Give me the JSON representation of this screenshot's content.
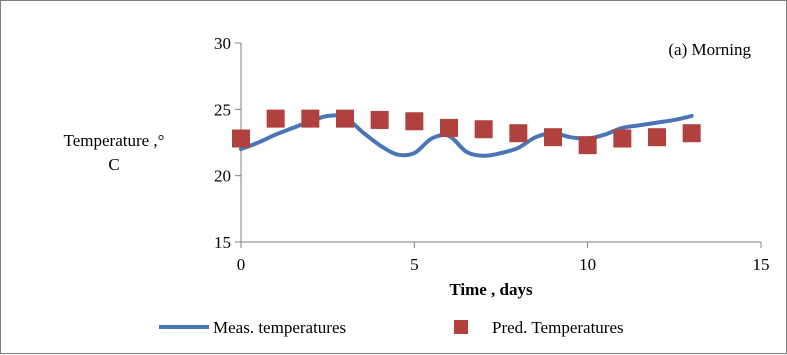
{
  "chart_data": {
    "type": "line",
    "annotation": "(a) Morning",
    "xlabel": "Time , days",
    "ylabel_line1": "Temperature ,°",
    "ylabel_line2": "C",
    "xlim": [
      0,
      15
    ],
    "ylim": [
      15,
      30
    ],
    "x_ticks": [
      0,
      5,
      10,
      15
    ],
    "y_ticks": [
      15,
      20,
      25,
      30
    ],
    "grid": false,
    "legend_position": "bottom",
    "series": [
      {
        "name": "Meas. temperatures",
        "style": "line",
        "color": "#4a76b5",
        "x": [
          0,
          0.5,
          1,
          1.5,
          2,
          2.5,
          3,
          3.5,
          4,
          4.5,
          5,
          5.5,
          6,
          6.5,
          7,
          7.5,
          8,
          8.5,
          9,
          9.5,
          10,
          10.5,
          11,
          11.5,
          12,
          12.5,
          13
        ],
        "y": [
          22.0,
          22.5,
          23.1,
          23.6,
          24.1,
          24.5,
          24.4,
          23.3,
          22.3,
          21.6,
          21.7,
          22.8,
          23.0,
          21.8,
          21.5,
          21.7,
          22.1,
          22.9,
          23.2,
          22.9,
          22.8,
          23.1,
          23.6,
          23.8,
          24.0,
          24.2,
          24.5
        ]
      },
      {
        "name": "Pred. Temperatures",
        "style": "square-marker",
        "color": "#b0413e",
        "x": [
          0,
          1,
          2,
          3,
          4,
          5,
          6,
          7,
          8,
          9,
          10,
          11,
          12,
          13
        ],
        "y": [
          22.8,
          24.3,
          24.3,
          24.3,
          24.2,
          24.1,
          23.6,
          23.5,
          23.2,
          22.9,
          22.3,
          22.8,
          22.9,
          23.2
        ]
      }
    ]
  }
}
